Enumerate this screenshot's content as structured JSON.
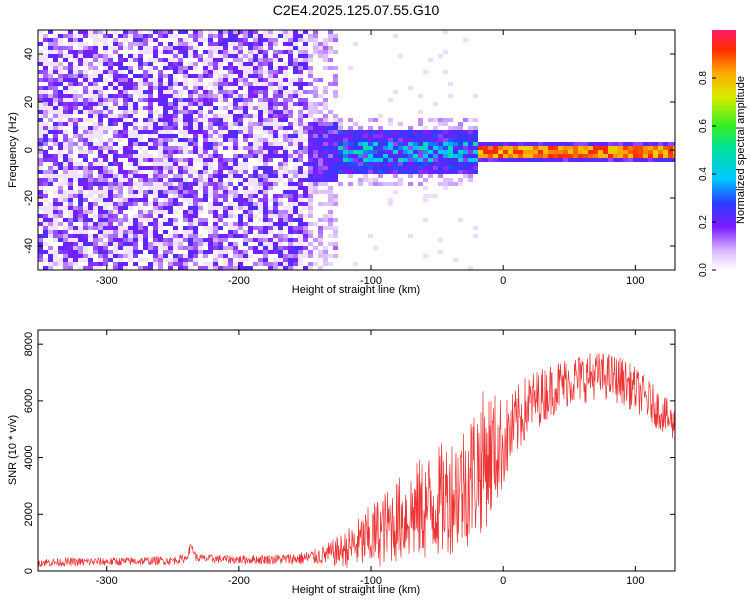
{
  "title": "C2E4.2025.125.07.55.G10",
  "chart_data": [
    {
      "type": "heatmap",
      "xlabel": "Height of straight line (km)",
      "ylabel": "Frequency (Hz)",
      "xlim": [
        -352,
        130
      ],
      "ylim": [
        -50,
        50
      ],
      "xticks": [
        -300,
        -200,
        -100,
        0,
        100
      ],
      "yticks": [
        -40,
        -20,
        0,
        20,
        40
      ],
      "colorbar": {
        "label": "Normalized spectral amplitude",
        "range": [
          0,
          1
        ],
        "ticks": [
          "0.0",
          "0.2",
          "0.4",
          "0.6",
          "0.8"
        ],
        "ticks_values": [
          0.0,
          0.2,
          0.4,
          0.6,
          0.8
        ]
      },
      "description_regions": [
        {
          "x": [
            -352,
            -150
          ],
          "freq": [
            -50,
            50
          ],
          "amplitude": 0.15
        },
        {
          "x": [
            -150,
            -125
          ],
          "freq": [
            -50,
            50
          ],
          "amplitude": 0.08
        },
        {
          "x": [
            -150,
            -20
          ],
          "freq": [
            -12,
            12
          ],
          "amplitude": 0.35
        },
        {
          "x": [
            -20,
            130
          ],
          "freq": [
            -1.5,
            2.5
          ],
          "amplitude": 0.85
        }
      ]
    },
    {
      "type": "line",
      "xlabel": "Height of straight line (km)",
      "ylabel": "SNR (10 * v/v)",
      "xlim": [
        -352,
        130
      ],
      "ylim": [
        0,
        8500
      ],
      "xticks": [
        -300,
        -200,
        -100,
        0,
        100
      ],
      "yticks": [
        0,
        2000,
        4000,
        6000,
        8000
      ],
      "color": "#ee3333",
      "x": [
        -352,
        -300,
        -250,
        -240,
        -236,
        -232,
        -200,
        -160,
        -150,
        -140,
        -130,
        -120,
        -110,
        -100,
        -90,
        -80,
        -70,
        -60,
        -50,
        -40,
        -30,
        -25,
        -20,
        -15,
        -10,
        -5,
        0,
        5,
        10,
        15,
        20,
        30,
        40,
        50,
        60,
        70,
        80,
        90,
        100,
        110,
        120,
        130
      ],
      "values": [
        300,
        330,
        370,
        450,
        900,
        450,
        400,
        420,
        450,
        520,
        620,
        760,
        960,
        1200,
        1500,
        1800,
        2000,
        2200,
        2400,
        2700,
        3000,
        3300,
        3600,
        3900,
        4100,
        4300,
        4500,
        4800,
        5200,
        5600,
        5900,
        6200,
        6500,
        6700,
        6800,
        6900,
        6850,
        6700,
        6400,
        6000,
        5600,
        5100
      ],
      "noise_amplitude": [
        150,
        150,
        150,
        150,
        150,
        150,
        150,
        200,
        250,
        300,
        450,
        650,
        900,
        1200,
        1300,
        1500,
        1700,
        1900,
        2000,
        2100,
        2300,
        2400,
        2500,
        2500,
        2400,
        2000,
        1600,
        1400,
        1300,
        1200,
        1100,
        1000,
        950,
        900,
        900,
        850,
        850,
        850,
        800,
        750,
        700,
        650
      ]
    }
  ]
}
